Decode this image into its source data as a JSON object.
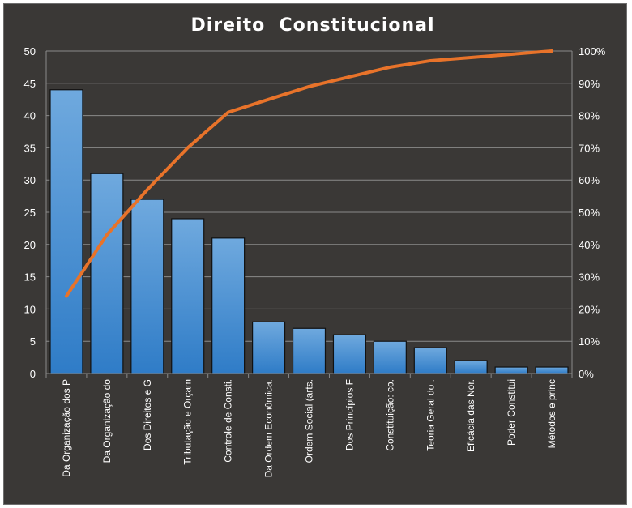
{
  "chart_data": {
    "type": "bar",
    "title": "Direito  Constitucional",
    "categories": [
      "Da Organização dos P",
      "Da Organização do",
      "Dos Direitos e G",
      "Tributação e Orçam",
      "Controle de Consti.",
      "Da Ordem Econômica.",
      "Ordem Social (arts.",
      "Dos Princípios F",
      "Constituição: co.",
      "Teoria Geral do .",
      "Eficácia das Nor.",
      "Poder Constitui",
      "Métodos e princ"
    ],
    "series": [
      {
        "type": "bar",
        "values": [
          44,
          31,
          27,
          24,
          21,
          8,
          7,
          6,
          5,
          4,
          2,
          1,
          1
        ]
      },
      {
        "type": "line",
        "axis": "secondary",
        "values": [
          24,
          43,
          57,
          70,
          81,
          85,
          89,
          92,
          95,
          97,
          98,
          99,
          100
        ]
      }
    ],
    "ylim": [
      0,
      50
    ],
    "yticks": [
      "0",
      "5",
      "10",
      "15",
      "20",
      "25",
      "30",
      "35",
      "40",
      "45",
      "50"
    ],
    "y2lim": [
      0,
      100
    ],
    "y2ticks": [
      "0%",
      "10%",
      "20%",
      "30%",
      "40%",
      "50%",
      "60%",
      "70%",
      "80%",
      "90%",
      "100%"
    ],
    "grid": true,
    "legend": "none",
    "colors": {
      "background": "#3a3836",
      "bar_top": "#6fa9de",
      "bar_bottom": "#2f7cc7",
      "line": "#e8732a",
      "grid": "#8a8a8a",
      "text": "#ffffff"
    }
  }
}
